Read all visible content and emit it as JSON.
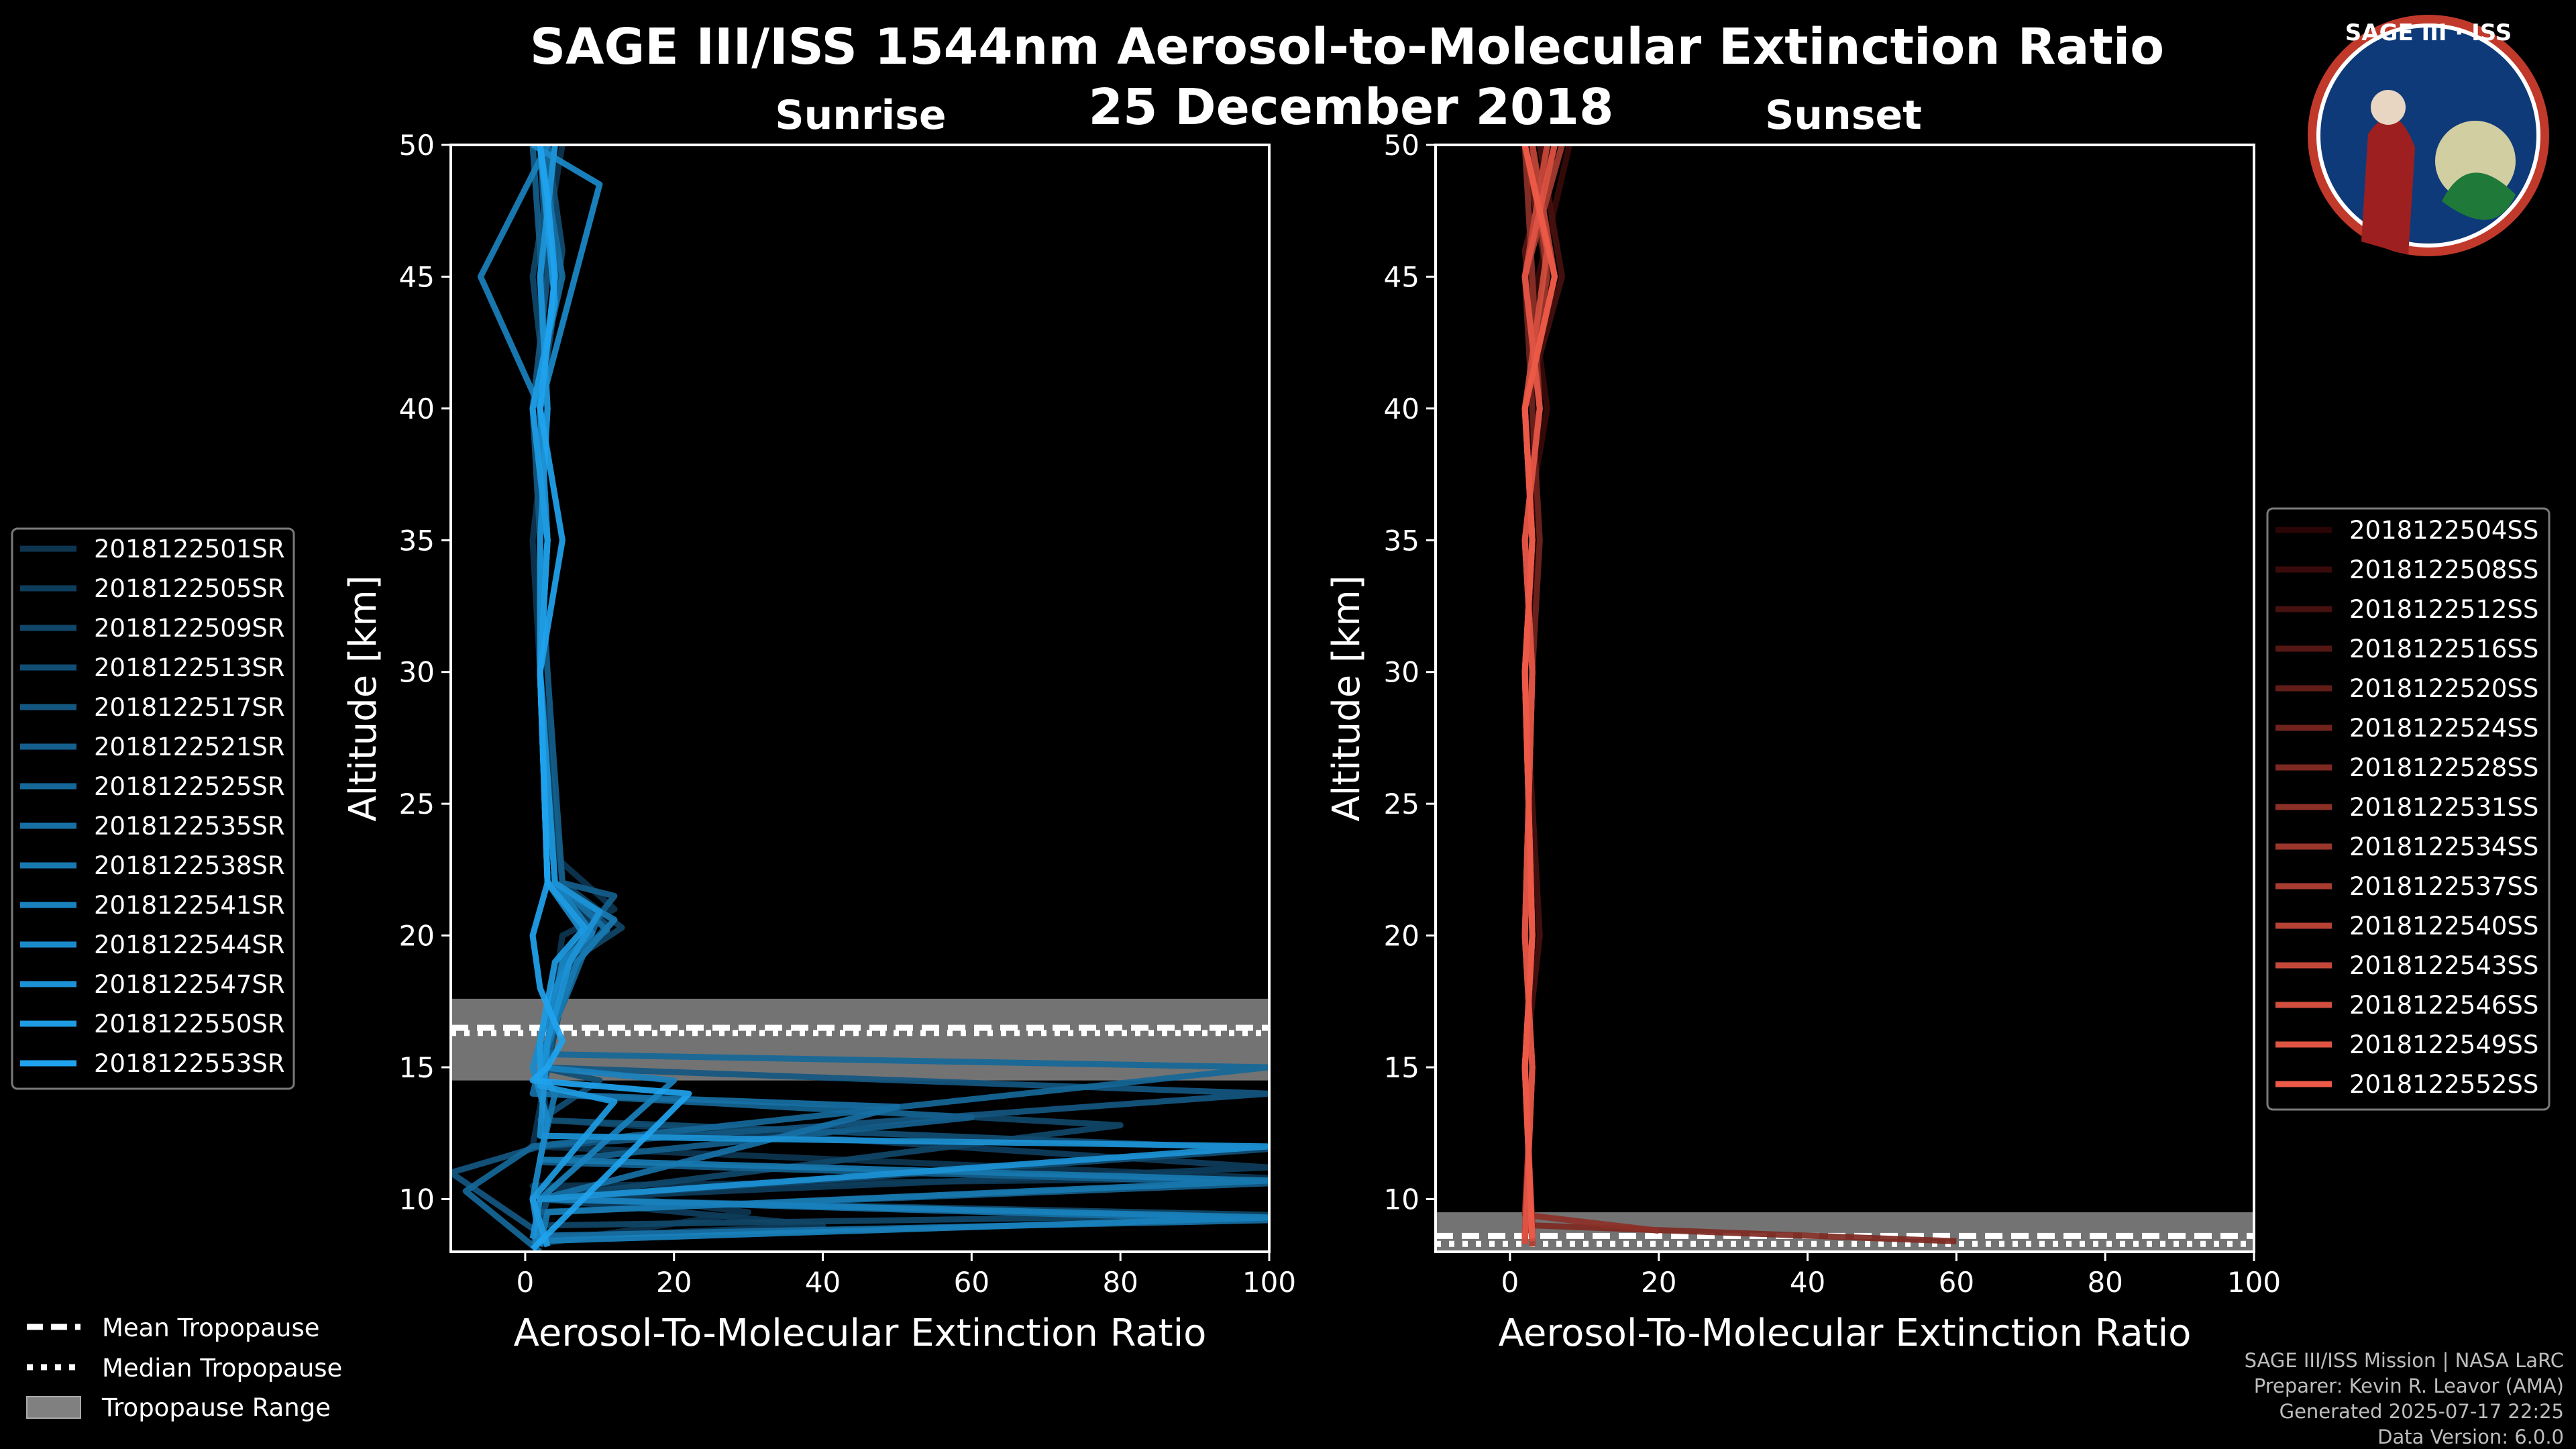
{
  "title_line1": "SAGE III/ISS 1544nm Aerosol-to-Molecular Extinction Ratio",
  "title_line2": "25 December 2018",
  "logo": {
    "text": "SAGE III · ISS",
    "colors": {
      "ring": "#c0392b",
      "field": "#0e3a7a"
    }
  },
  "footer": {
    "line1": "SAGE III/ISS Mission | NASA LaRC",
    "line2": "Preparer: Kevin R. Leavor (AMA)",
    "line3": "Generated 2025-07-17 22:25",
    "line4": "Data Version: 6.0.0"
  },
  "tropo_legend": {
    "mean": "Mean Tropopause",
    "median": "Median Tropopause",
    "range": "Tropopause Range"
  },
  "chart_data": [
    {
      "type": "line",
      "title": "Sunrise",
      "xlabel": "Aerosol-To-Molecular Extinction Ratio",
      "ylabel": "Altitude [km]",
      "xlim": [
        -10,
        100
      ],
      "ylim": [
        8,
        50
      ],
      "xticks": [
        0,
        20,
        40,
        60,
        80,
        100
      ],
      "yticks": [
        10,
        15,
        20,
        25,
        30,
        35,
        40,
        45,
        50
      ],
      "grid": false,
      "legend_position": "left",
      "color_start": "#0d3550",
      "color_end": "#1fa3ee",
      "series_names": [
        "2018122501SR",
        "2018122505SR",
        "2018122509SR",
        "2018122513SR",
        "2018122517SR",
        "2018122521SR",
        "2018122525SR",
        "2018122535SR",
        "2018122538SR",
        "2018122541SR",
        "2018122544SR",
        "2018122547SR",
        "2018122550SR",
        "2018122553SR"
      ],
      "series": [
        {
          "name": "2018122501SR",
          "x": [
            2,
            30,
            1,
            100,
            1,
            3,
            4,
            5,
            12,
            4,
            2,
            1,
            3,
            2,
            5
          ],
          "y": [
            8.3,
            9.5,
            10.5,
            10.8,
            12,
            15,
            18,
            20,
            21,
            23,
            30,
            35,
            40,
            45,
            50
          ]
        },
        {
          "name": "2018122505SR",
          "x": [
            1,
            40,
            2,
            100,
            3,
            2,
            5,
            9,
            4,
            2,
            3,
            2,
            4,
            3
          ],
          "y": [
            8.5,
            9,
            10,
            11.2,
            13,
            15,
            18,
            20.5,
            22,
            30,
            35,
            40,
            45,
            50
          ]
        },
        {
          "name": "2018122509SR",
          "x": [
            2,
            100,
            1,
            80,
            2,
            3,
            6,
            13,
            5,
            2,
            2,
            3,
            1,
            4
          ],
          "y": [
            9,
            9.4,
            10,
            12.8,
            14,
            15,
            19,
            20.3,
            22,
            30,
            35,
            40,
            45,
            50
          ]
        },
        {
          "name": "2018122513SR",
          "x": [
            1,
            3,
            100,
            2,
            10,
            2,
            3,
            7,
            11,
            4,
            2,
            3,
            2,
            5,
            3
          ],
          "y": [
            8.2,
            10,
            11.9,
            13,
            14.5,
            15,
            16,
            19,
            20.4,
            22,
            30,
            35,
            40,
            46,
            50
          ]
        },
        {
          "name": "2018122517SR",
          "x": [
            3,
            -10,
            2,
            100,
            2,
            2,
            4,
            8,
            4,
            2,
            2,
            1,
            3,
            2
          ],
          "y": [
            8.5,
            11,
            12,
            14,
            15,
            16,
            18,
            20,
            22,
            30,
            35,
            40,
            45,
            50
          ]
        },
        {
          "name": "2018122521SR",
          "x": [
            1,
            100,
            2,
            60,
            2,
            3,
            5,
            12,
            5,
            3,
            2,
            3,
            2,
            1
          ],
          "y": [
            9.5,
            10.6,
            11.4,
            13.1,
            14,
            15,
            19,
            21.5,
            22,
            30,
            35,
            40,
            46,
            50
          ]
        },
        {
          "name": "2018122525SR",
          "x": [
            2,
            -8,
            1,
            100,
            2,
            3,
            6,
            10,
            3,
            2,
            3,
            2,
            4,
            3
          ],
          "y": [
            8,
            10.3,
            12,
            15,
            15.5,
            16,
            18,
            20.8,
            22,
            30,
            35,
            40,
            45,
            50
          ]
        },
        {
          "name": "2018122535SR",
          "x": [
            1,
            100,
            2,
            50,
            1,
            3,
            5,
            11,
            4,
            2,
            3,
            1,
            5,
            2
          ],
          "y": [
            8.6,
            9.2,
            10,
            13.5,
            14,
            16,
            19,
            20.2,
            22,
            30,
            35,
            40,
            45,
            50
          ]
        },
        {
          "name": "2018122538SR",
          "x": [
            2,
            3,
            100,
            2,
            4,
            2,
            7,
            12,
            3,
            2,
            2,
            3,
            2,
            4
          ],
          "y": [
            8.2,
            9.5,
            10.7,
            11.5,
            14,
            15,
            19,
            20.6,
            22,
            30,
            35,
            40,
            45,
            50
          ]
        },
        {
          "name": "2018122541SR",
          "x": [
            1,
            100,
            2,
            20,
            2,
            3,
            5,
            9,
            4,
            2,
            3,
            2,
            -6,
            3
          ],
          "y": [
            8.4,
            9.3,
            10,
            14.5,
            15,
            16,
            19,
            20.1,
            22,
            30,
            35,
            40,
            45,
            50
          ]
        },
        {
          "name": "2018122544SR",
          "x": [
            2,
            1,
            3,
            1,
            4,
            8,
            3,
            2,
            3,
            2,
            10,
            1
          ],
          "y": [
            8.3,
            10,
            13,
            15,
            18,
            20,
            22,
            30,
            35,
            40,
            48.5,
            50
          ]
        },
        {
          "name": "2018122547SR",
          "x": [
            1,
            2,
            100,
            2,
            3,
            6,
            10,
            4,
            2,
            2,
            3,
            2,
            4
          ],
          "y": [
            8.5,
            10,
            12,
            12.4,
            16,
            19,
            20.9,
            22,
            30,
            35,
            40,
            45,
            50
          ]
        },
        {
          "name": "2018122550SR",
          "x": [
            3,
            1,
            12,
            2,
            2,
            4,
            8,
            3,
            2,
            3,
            1,
            4,
            2
          ],
          "y": [
            8.2,
            10,
            13.7,
            14.3,
            16,
            19,
            20.3,
            22,
            30,
            35,
            40,
            44,
            50
          ]
        },
        {
          "name": "2018122553SR",
          "x": [
            1,
            22,
            1,
            3,
            5,
            2,
            1,
            3,
            2,
            5,
            2,
            4,
            3,
            2
          ],
          "y": [
            8.1,
            14,
            14.5,
            15,
            16,
            18,
            20,
            22,
            30,
            35,
            40,
            45,
            48,
            50
          ]
        }
      ],
      "tropopause": {
        "mean": 16.5,
        "median": 16.3,
        "range": [
          14.5,
          17.6
        ]
      }
    },
    {
      "type": "line",
      "title": "Sunset",
      "xlabel": "Aerosol-To-Molecular Extinction Ratio",
      "ylabel": "Altitude [km]",
      "xlim": [
        -10,
        100
      ],
      "ylim": [
        8,
        50
      ],
      "xticks": [
        0,
        20,
        40,
        60,
        80,
        100
      ],
      "yticks": [
        10,
        15,
        20,
        25,
        30,
        35,
        40,
        45,
        50
      ],
      "grid": false,
      "legend_position": "right",
      "color_start": "#2a0505",
      "color_end": "#ee5a48",
      "series_names": [
        "2018122504SS",
        "2018122508SS",
        "2018122512SS",
        "2018122516SS",
        "2018122520SS",
        "2018122524SS",
        "2018122528SS",
        "2018122531SS",
        "2018122534SS",
        "2018122537SS",
        "2018122540SS",
        "2018122543SS",
        "2018122546SS",
        "2018122549SS",
        "2018122552SS"
      ],
      "series": [
        {
          "name": "2018122504SS",
          "x": [
            3,
            2,
            3,
            2,
            4,
            2,
            6,
            3
          ],
          "y": [
            8.5,
            15,
            20,
            30,
            35,
            40,
            45,
            50
          ]
        },
        {
          "name": "2018122508SS",
          "x": [
            2,
            3,
            2,
            3,
            2,
            5,
            3,
            8
          ],
          "y": [
            8.3,
            15,
            20,
            30,
            35,
            40,
            44,
            50
          ]
        },
        {
          "name": "2018122512SS",
          "x": [
            3,
            2,
            4,
            2,
            3,
            2,
            7,
            4
          ],
          "y": [
            8.4,
            15,
            20,
            30,
            35,
            40,
            45,
            50
          ]
        },
        {
          "name": "2018122516SS",
          "x": [
            2,
            3,
            2,
            3,
            2,
            4,
            2,
            6
          ],
          "y": [
            8.6,
            15,
            20,
            30,
            35,
            40,
            46,
            50
          ]
        },
        {
          "name": "2018122520SS",
          "x": [
            3,
            2,
            3,
            2,
            3,
            2,
            5,
            2
          ],
          "y": [
            8.2,
            15,
            20,
            30,
            35,
            40,
            45,
            50
          ]
        },
        {
          "name": "2018122524SS",
          "x": [
            2,
            3,
            2,
            3,
            4,
            3,
            2,
            5
          ],
          "y": [
            8.5,
            15,
            20,
            30,
            35,
            40,
            45,
            50
          ]
        },
        {
          "name": "2018122528SS",
          "x": [
            60,
            3,
            2,
            3,
            2,
            3,
            2,
            6,
            3
          ],
          "y": [
            8.4,
            9,
            15,
            20,
            30,
            35,
            40,
            45,
            50
          ]
        },
        {
          "name": "2018122531SS",
          "x": [
            20,
            2,
            3,
            2,
            3,
            2,
            4,
            2
          ],
          "y": [
            8.8,
            9.4,
            15,
            20,
            30,
            35,
            40,
            50
          ]
        },
        {
          "name": "2018122534SS",
          "x": [
            3,
            2,
            3,
            2,
            3,
            2,
            5,
            3
          ],
          "y": [
            8.3,
            15,
            20,
            30,
            35,
            40,
            45,
            50
          ]
        },
        {
          "name": "2018122537SS",
          "x": [
            2,
            3,
            2,
            3,
            2,
            4,
            2,
            7
          ],
          "y": [
            8.5,
            15,
            20,
            30,
            35,
            40,
            45,
            50
          ]
        },
        {
          "name": "2018122540SS",
          "x": [
            3,
            2,
            3,
            2,
            3,
            2,
            6,
            3
          ],
          "y": [
            8.2,
            15,
            20,
            30,
            35,
            40,
            45,
            50
          ]
        },
        {
          "name": "2018122543SS",
          "x": [
            2,
            3,
            2,
            3,
            2,
            4,
            2,
            5
          ],
          "y": [
            8.6,
            15,
            20,
            30,
            35,
            40,
            45,
            50
          ]
        },
        {
          "name": "2018122546SS",
          "x": [
            3,
            2,
            3,
            2,
            3,
            2,
            5,
            2
          ],
          "y": [
            8.4,
            15,
            20,
            30,
            35,
            40,
            46,
            50
          ]
        },
        {
          "name": "2018122549SS",
          "x": [
            2,
            3,
            2,
            3,
            2,
            4,
            2,
            6
          ],
          "y": [
            8.3,
            15,
            20,
            30,
            35,
            40,
            45,
            50
          ]
        },
        {
          "name": "2018122552SS",
          "x": [
            3,
            2,
            3,
            2,
            3,
            2,
            6,
            2
          ],
          "y": [
            8.5,
            15,
            20,
            30,
            35,
            40,
            45,
            50
          ]
        }
      ],
      "tropopause": {
        "mean": 8.6,
        "median": 8.3,
        "range": [
          8.0,
          9.5
        ]
      }
    }
  ]
}
